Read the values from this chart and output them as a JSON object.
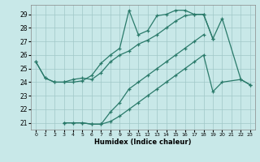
{
  "xlabel": "Humidex (Indice chaleur)",
  "bg_color": "#c8e8e8",
  "line_color": "#2a7a6a",
  "grid_color": "#a0c8c8",
  "xlim": [
    -0.5,
    23.5
  ],
  "ylim": [
    20.5,
    29.7
  ],
  "xticks": [
    0,
    1,
    2,
    3,
    4,
    5,
    6,
    7,
    8,
    9,
    10,
    11,
    12,
    13,
    14,
    15,
    16,
    17,
    18,
    19,
    20,
    21,
    22,
    23
  ],
  "yticks": [
    21,
    22,
    23,
    24,
    25,
    26,
    27,
    28,
    29
  ],
  "line1_x": [
    0,
    1,
    2,
    3,
    4,
    5,
    6,
    7,
    8,
    9,
    10,
    11,
    12,
    13,
    14,
    15,
    16,
    17,
    18,
    19,
    20,
    22,
    23
  ],
  "line1_y": [
    25.5,
    24.3,
    24.0,
    24.0,
    24.0,
    24.1,
    24.5,
    25.4,
    26.0,
    26.5,
    29.3,
    27.5,
    27.8,
    28.9,
    29.0,
    29.3,
    29.3,
    29.0,
    29.0,
    27.2,
    28.7,
    24.2,
    23.8
  ],
  "line2_x": [
    0,
    1,
    2,
    3,
    4,
    5,
    6,
    7,
    8,
    9,
    10,
    11,
    12,
    13,
    14,
    15,
    16,
    17,
    18,
    19
  ],
  "line2_y": [
    25.5,
    24.3,
    24.0,
    24.0,
    24.2,
    24.3,
    24.2,
    24.7,
    25.5,
    26.0,
    26.3,
    26.8,
    27.1,
    27.5,
    28.0,
    28.5,
    28.9,
    29.0,
    29.0,
    27.2
  ],
  "line3_x": [
    3,
    4,
    5,
    6,
    7,
    8,
    9,
    10,
    11,
    12,
    13,
    14,
    15,
    16,
    17,
    18
  ],
  "line3_y": [
    21.0,
    21.0,
    21.0,
    20.9,
    20.9,
    21.8,
    22.5,
    23.5,
    24.0,
    24.5,
    25.0,
    25.5,
    26.0,
    26.5,
    27.0,
    27.5
  ],
  "line4_x": [
    3,
    4,
    5,
    6,
    7,
    8,
    9,
    10,
    11,
    12,
    13,
    14,
    15,
    16,
    17,
    18,
    19,
    20,
    22,
    23
  ],
  "line4_y": [
    21.0,
    21.0,
    21.0,
    20.9,
    20.9,
    21.1,
    21.5,
    22.0,
    22.5,
    23.0,
    23.5,
    24.0,
    24.5,
    25.0,
    25.5,
    26.0,
    23.3,
    24.0,
    24.2,
    23.8
  ]
}
